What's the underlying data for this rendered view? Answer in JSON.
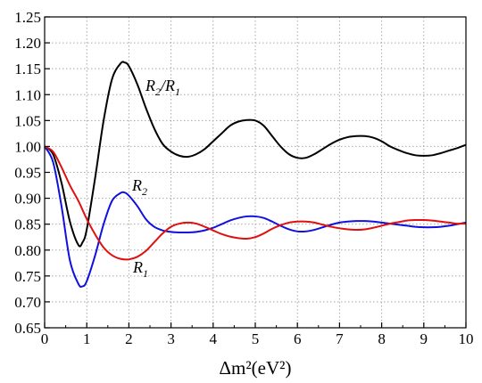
{
  "chart_data": {
    "type": "line",
    "title": "",
    "xlabel": "Δm²(eV²)",
    "ylabel": "",
    "xlim": [
      0,
      10
    ],
    "ylim": [
      0.65,
      1.25
    ],
    "x_ticks": [
      0,
      1,
      2,
      3,
      4,
      5,
      6,
      7,
      8,
      9,
      10
    ],
    "y_ticks": [
      0.65,
      0.7,
      0.75,
      0.8,
      0.85,
      0.9,
      0.95,
      1.0,
      1.05,
      1.1,
      1.15,
      1.2,
      1.25
    ],
    "grid": true,
    "legend": "none (series labeled inline)",
    "series": [
      {
        "name": "R2/R1",
        "label_main": "R",
        "label_parts": [
          "2",
          "/R",
          "1"
        ],
        "color": "#000000",
        "x": [
          0,
          0.2,
          0.4,
          0.6,
          0.8,
          0.9,
          1.0,
          1.2,
          1.4,
          1.6,
          1.8,
          1.9,
          2.0,
          2.2,
          2.4,
          2.6,
          2.8,
          3.0,
          3.2,
          3.4,
          3.6,
          3.8,
          4.0,
          4.2,
          4.4,
          4.6,
          4.8,
          5.0,
          5.2,
          5.4,
          5.6,
          5.8,
          6.0,
          6.2,
          6.4,
          6.6,
          6.8,
          7.0,
          7.2,
          7.4,
          7.6,
          7.8,
          8.0,
          8.2,
          8.4,
          8.6,
          8.8,
          9.0,
          9.2,
          9.4,
          9.6,
          9.8,
          10.0
        ],
        "y": [
          1.0,
          0.985,
          0.93,
          0.855,
          0.81,
          0.815,
          0.84,
          0.94,
          1.05,
          1.13,
          1.16,
          1.162,
          1.155,
          1.12,
          1.075,
          1.035,
          1.005,
          0.99,
          0.982,
          0.98,
          0.985,
          0.995,
          1.01,
          1.025,
          1.04,
          1.048,
          1.051,
          1.05,
          1.04,
          1.02,
          1.0,
          0.985,
          0.978,
          0.978,
          0.985,
          0.995,
          1.005,
          1.013,
          1.018,
          1.02,
          1.02,
          1.017,
          1.01,
          1.0,
          0.993,
          0.987,
          0.983,
          0.982,
          0.983,
          0.987,
          0.992,
          0.997,
          1.003
        ]
      },
      {
        "name": "R2",
        "label_main": "R",
        "label_parts": [
          "2"
        ],
        "color": "#1010e0",
        "x": [
          0,
          0.2,
          0.4,
          0.6,
          0.8,
          0.9,
          1.0,
          1.2,
          1.4,
          1.6,
          1.8,
          1.9,
          2.0,
          2.2,
          2.4,
          2.6,
          2.8,
          3.0,
          3.2,
          3.4,
          3.6,
          3.8,
          4.0,
          4.2,
          4.4,
          4.6,
          4.8,
          5.0,
          5.2,
          5.4,
          5.6,
          5.8,
          6.0,
          6.2,
          6.4,
          6.6,
          6.8,
          7.0,
          7.2,
          7.4,
          7.6,
          7.8,
          8.0,
          8.2,
          8.4,
          8.6,
          8.8,
          9.0,
          9.2,
          9.4,
          9.6,
          9.8,
          10.0
        ],
        "y": [
          1.0,
          0.97,
          0.885,
          0.78,
          0.735,
          0.73,
          0.74,
          0.79,
          0.85,
          0.895,
          0.91,
          0.911,
          0.905,
          0.885,
          0.86,
          0.845,
          0.838,
          0.835,
          0.834,
          0.834,
          0.835,
          0.838,
          0.843,
          0.85,
          0.857,
          0.862,
          0.865,
          0.865,
          0.862,
          0.855,
          0.847,
          0.84,
          0.836,
          0.836,
          0.839,
          0.844,
          0.849,
          0.853,
          0.855,
          0.856,
          0.856,
          0.855,
          0.853,
          0.851,
          0.849,
          0.847,
          0.845,
          0.844,
          0.844,
          0.845,
          0.847,
          0.85,
          0.853
        ]
      },
      {
        "name": "R1",
        "label_main": "R",
        "label_parts": [
          "1"
        ],
        "color": "#e01010",
        "x": [
          0,
          0.2,
          0.4,
          0.6,
          0.8,
          1.0,
          1.2,
          1.4,
          1.6,
          1.8,
          2.0,
          2.2,
          2.4,
          2.6,
          2.8,
          3.0,
          3.2,
          3.4,
          3.6,
          3.8,
          4.0,
          4.2,
          4.4,
          4.6,
          4.8,
          5.0,
          5.2,
          5.4,
          5.6,
          5.8,
          6.0,
          6.2,
          6.4,
          6.6,
          6.8,
          7.0,
          7.2,
          7.4,
          7.6,
          7.8,
          8.0,
          8.2,
          8.4,
          8.6,
          8.8,
          9.0,
          9.2,
          9.4,
          9.6,
          9.8,
          10.0
        ],
        "y": [
          1.0,
          0.99,
          0.96,
          0.925,
          0.895,
          0.86,
          0.83,
          0.805,
          0.79,
          0.783,
          0.782,
          0.787,
          0.798,
          0.815,
          0.832,
          0.845,
          0.851,
          0.853,
          0.851,
          0.845,
          0.838,
          0.831,
          0.826,
          0.823,
          0.822,
          0.825,
          0.832,
          0.841,
          0.848,
          0.853,
          0.855,
          0.855,
          0.853,
          0.849,
          0.845,
          0.842,
          0.84,
          0.839,
          0.84,
          0.843,
          0.847,
          0.851,
          0.854,
          0.857,
          0.858,
          0.858,
          0.857,
          0.855,
          0.853,
          0.851,
          0.851
        ]
      }
    ]
  }
}
